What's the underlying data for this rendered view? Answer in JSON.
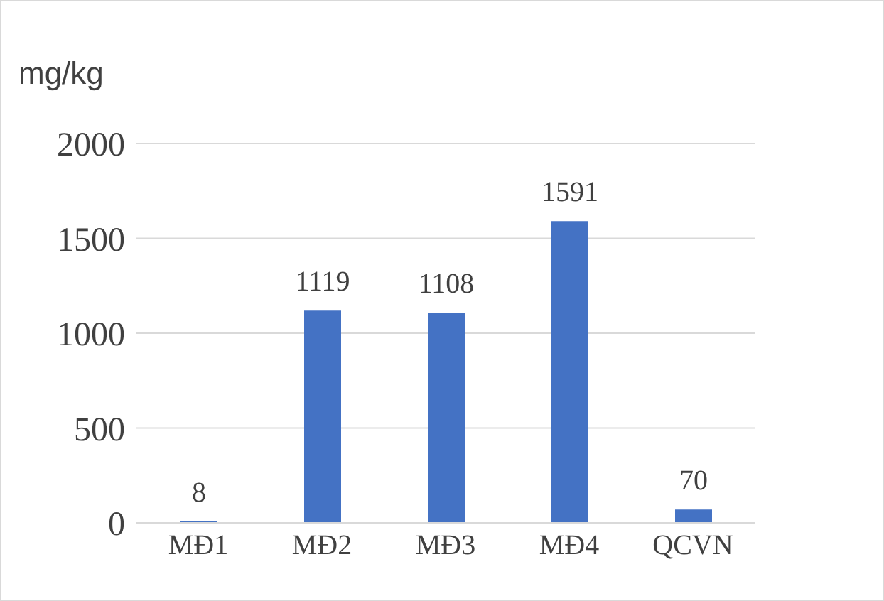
{
  "chart_data": {
    "type": "bar",
    "ylabel": "mg/kg",
    "categories": [
      "MĐ1",
      "MĐ2",
      "MĐ3",
      "MĐ4",
      "QCVN"
    ],
    "values": [
      8,
      1119,
      1108,
      1591,
      70
    ],
    "color": "#4472c4",
    "ylim": [
      0,
      2000
    ],
    "yticks": [
      0,
      500,
      1000,
      1500,
      2000
    ],
    "grid": "y",
    "data_labels": true
  }
}
